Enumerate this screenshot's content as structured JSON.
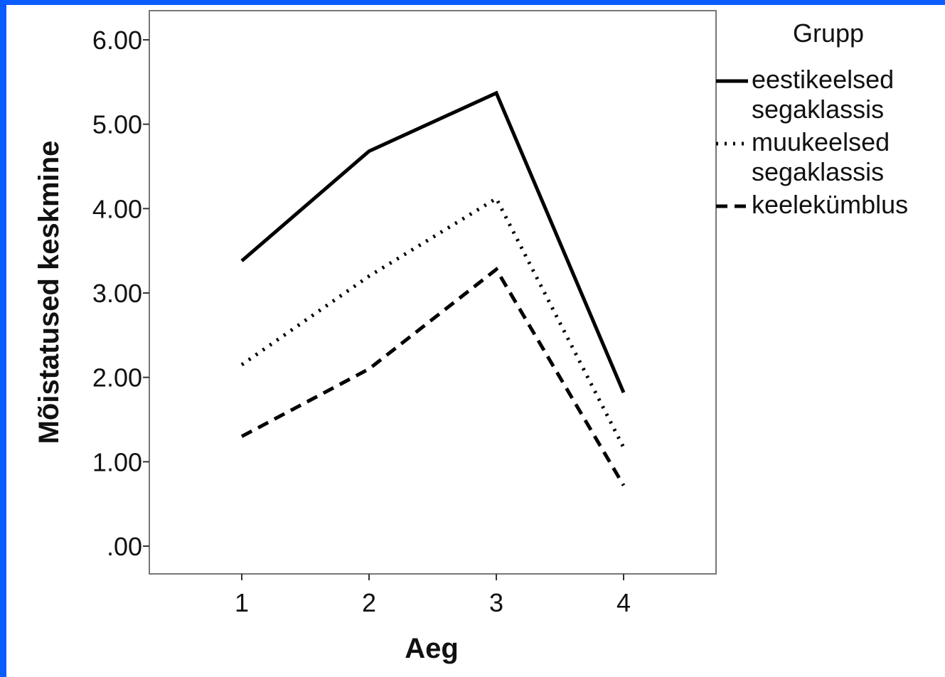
{
  "chart_data": {
    "type": "line",
    "xlabel": "Aeg",
    "ylabel": "Mõistatused keskmine",
    "categories": [
      "1",
      "2",
      "3",
      "4"
    ],
    "yticks": [
      ".00",
      "1.00",
      "2.00",
      "3.00",
      "4.00",
      "5.00",
      "6.00"
    ],
    "ylim": [
      0,
      6.0
    ],
    "grid": false,
    "legend": {
      "title": "Grupp",
      "placement": "right"
    },
    "series": [
      {
        "name": "eestikeelsed segaklassis",
        "label_lines": [
          "eestikeelsed",
          "segaklassis"
        ],
        "style": "solid",
        "values": [
          3.38,
          4.68,
          5.37,
          1.82
        ]
      },
      {
        "name": "muukeelsed segaklassis",
        "label_lines": [
          "muukeelsed",
          "segaklassis"
        ],
        "style": "dotted",
        "values": [
          2.15,
          3.2,
          4.12,
          1.17
        ]
      },
      {
        "name": "keelekümblus",
        "label_lines": [
          "keelekümblus"
        ],
        "style": "dashed",
        "values": [
          1.3,
          2.1,
          3.28,
          0.72
        ]
      }
    ],
    "colors": {
      "frame": "#0a5cff",
      "lines": "#000000"
    }
  }
}
